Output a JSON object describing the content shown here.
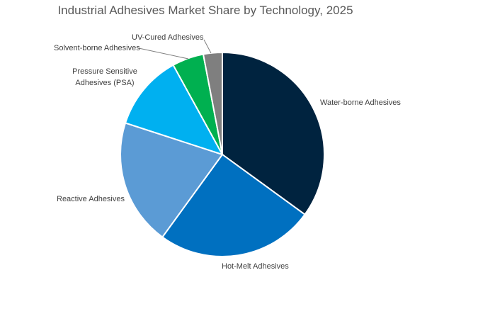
{
  "chart_data": {
    "type": "pie",
    "title": "Industrial Adhesives Market Share by Technology, 2025",
    "start_angle_deg": 0,
    "direction": "clockwise",
    "slices": [
      {
        "label": "Water-borne Adhesives",
        "value": 35,
        "color": "#00233f"
      },
      {
        "label": "Hot-Melt Adhesives",
        "value": 25,
        "color": "#0070c0"
      },
      {
        "label": "Reactive Adhesives",
        "value": 20,
        "color": "#5b9bd5"
      },
      {
        "label": "Pressure Sensitive Adhesives (PSA)",
        "value": 12,
        "color": "#00b0f0"
      },
      {
        "label": "Solvent-borne Adhesives",
        "value": 5,
        "color": "#00b050"
      },
      {
        "label": "UV-Cured Adhesives",
        "value": 3,
        "color": "#7f7f7f"
      }
    ]
  }
}
